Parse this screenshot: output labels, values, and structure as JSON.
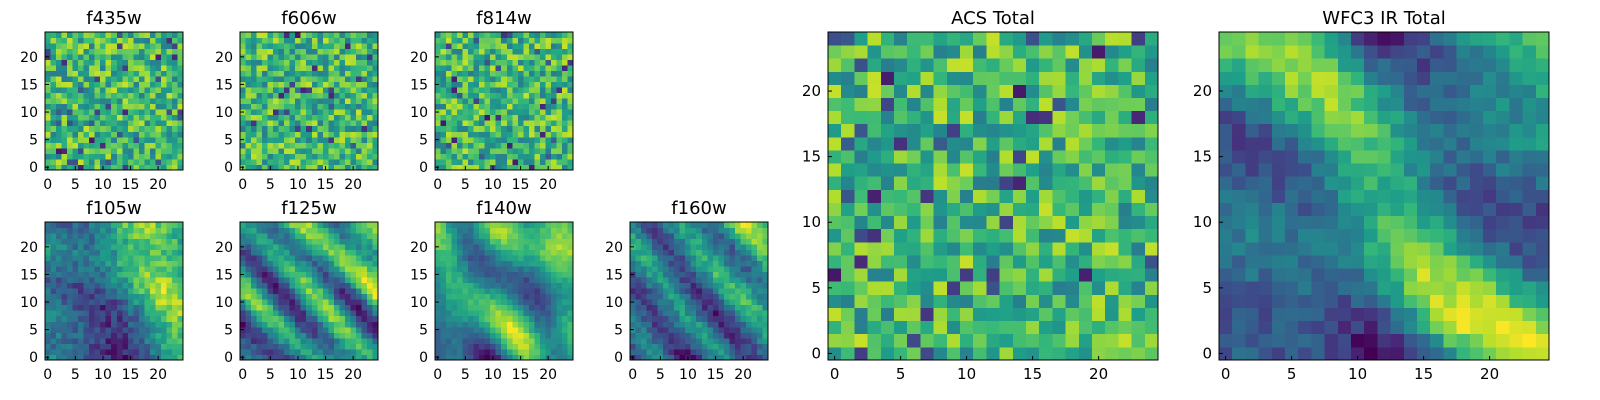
{
  "chart_data": [
    {
      "type": "heatmap",
      "title": "f435w",
      "x_ticks": [
        0,
        5,
        10,
        15,
        20
      ],
      "y_ticks": [
        0,
        5,
        10,
        15,
        20
      ],
      "xlim": [
        -0.5,
        24.5
      ],
      "ylim": [
        -0.5,
        24.5
      ],
      "grid_size": 25,
      "colormap": "viridis",
      "pattern": "noise"
    },
    {
      "type": "heatmap",
      "title": "f606w",
      "x_ticks": [
        0,
        5,
        10,
        15,
        20
      ],
      "y_ticks": [
        0,
        5,
        10,
        15,
        20
      ],
      "xlim": [
        -0.5,
        24.5
      ],
      "ylim": [
        -0.5,
        24.5
      ],
      "grid_size": 25,
      "colormap": "viridis",
      "pattern": "noise"
    },
    {
      "type": "heatmap",
      "title": "f814w",
      "x_ticks": [
        0,
        5,
        10,
        15,
        20
      ],
      "y_ticks": [
        0,
        5,
        10,
        15,
        20
      ],
      "xlim": [
        -0.5,
        24.5
      ],
      "ylim": [
        -0.5,
        24.5
      ],
      "grid_size": 25,
      "colormap": "viridis",
      "pattern": "noise"
    },
    {
      "type": "heatmap",
      "title": "f105w",
      "x_ticks": [
        0,
        5,
        10,
        15,
        20
      ],
      "y_ticks": [
        0,
        5,
        10,
        15,
        20
      ],
      "xlim": [
        -0.5,
        24.5
      ],
      "ylim": [
        -0.5,
        24.5
      ],
      "grid_size": 25,
      "colormap": "viridis",
      "pattern": "smooth"
    },
    {
      "type": "heatmap",
      "title": "f125w",
      "x_ticks": [
        0,
        5,
        10,
        15,
        20
      ],
      "y_ticks": [
        0,
        5,
        10,
        15,
        20
      ],
      "xlim": [
        -0.5,
        24.5
      ],
      "ylim": [
        -0.5,
        24.5
      ],
      "grid_size": 25,
      "colormap": "viridis",
      "pattern": "smooth"
    },
    {
      "type": "heatmap",
      "title": "f140w",
      "x_ticks": [
        0,
        5,
        10,
        15,
        20
      ],
      "y_ticks": [
        0,
        5,
        10,
        15,
        20
      ],
      "xlim": [
        -0.5,
        24.5
      ],
      "ylim": [
        -0.5,
        24.5
      ],
      "grid_size": 25,
      "colormap": "viridis",
      "pattern": "smooth"
    },
    {
      "type": "heatmap",
      "title": "f160w",
      "x_ticks": [
        0,
        5,
        10,
        15,
        20
      ],
      "y_ticks": [
        0,
        5,
        10,
        15,
        20
      ],
      "xlim": [
        -0.5,
        24.5
      ],
      "ylim": [
        -0.5,
        24.5
      ],
      "grid_size": 25,
      "colormap": "viridis",
      "pattern": "smooth"
    },
    {
      "type": "heatmap",
      "title": "ACS Total",
      "x_ticks": [
        0,
        5,
        10,
        15,
        20
      ],
      "y_ticks": [
        0,
        5,
        10,
        15,
        20
      ],
      "xlim": [
        -0.5,
        24.5
      ],
      "ylim": [
        -0.5,
        24.5
      ],
      "grid_size": 25,
      "colormap": "viridis",
      "pattern": "noise"
    },
    {
      "type": "heatmap",
      "title": "WFC3 IR Total",
      "x_ticks": [
        0,
        5,
        10,
        15,
        20
      ],
      "y_ticks": [
        0,
        5,
        10,
        15,
        20
      ],
      "xlim": [
        -0.5,
        24.5
      ],
      "ylim": [
        -0.5,
        24.5
      ],
      "grid_size": 25,
      "colormap": "viridis",
      "pattern": "smooth"
    }
  ]
}
